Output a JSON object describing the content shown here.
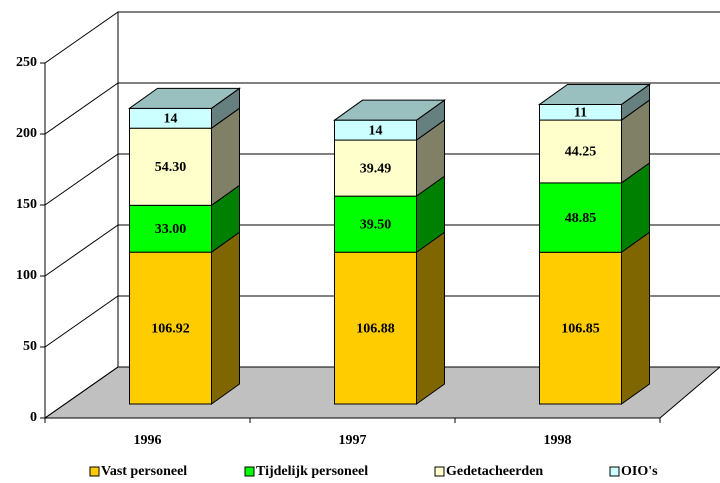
{
  "chart_data": {
    "type": "bar3d_stacked",
    "categories": [
      "1996",
      "1997",
      "1998"
    ],
    "series": [
      {
        "name": "Vast personeel",
        "color": "#ffcc00",
        "values": [
          106.92,
          106.88,
          106.85
        ],
        "value_labels": [
          "106.92",
          "106.88",
          "106.85"
        ]
      },
      {
        "name": "Tijdelijk personeel",
        "color": "#00ff00",
        "values": [
          33,
          39.5,
          48.85
        ],
        "value_labels": [
          "33.00",
          "39.50",
          "48.85"
        ]
      },
      {
        "name": "Gedetacheerden",
        "color": "#ffffcc",
        "values": [
          54.3,
          39.49,
          44.25
        ],
        "value_labels": [
          "54.30",
          "39.49",
          "44.25"
        ]
      },
      {
        "name": "OIO's",
        "color": "#ccffff",
        "values": [
          14,
          14,
          11
        ],
        "value_labels": [
          "14",
          "14",
          "11"
        ]
      }
    ],
    "ylim": [
      0,
      250
    ],
    "yticks": [
      0,
      50,
      100,
      150,
      200,
      250
    ],
    "grid": true,
    "legend": "bottom"
  }
}
